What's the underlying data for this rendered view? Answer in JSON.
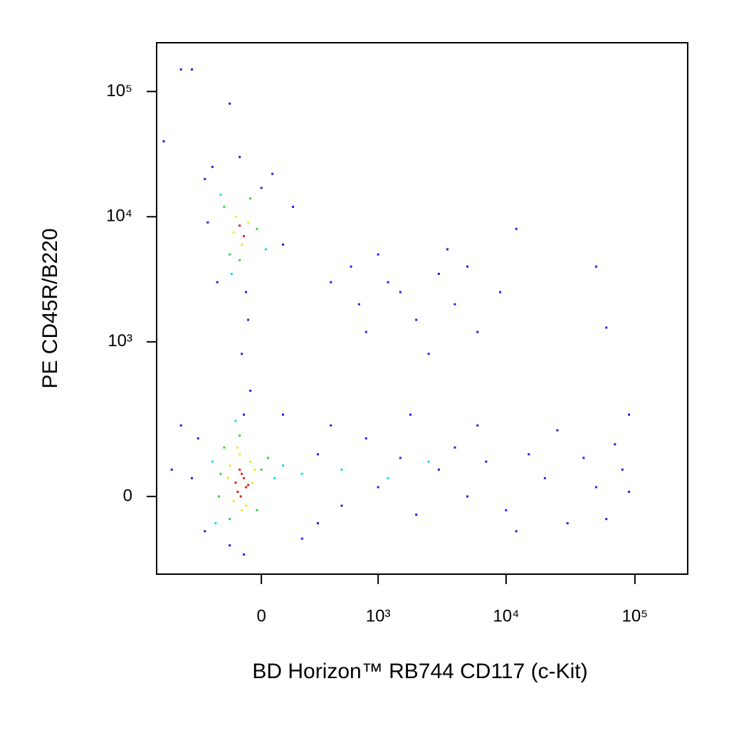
{
  "chart_data": {
    "type": "scatter",
    "xlabel": "BD Horizon™ RB744 CD117 (c-Kit)",
    "ylabel": "PE  CD45R/B220",
    "xscale": "biexponential",
    "yscale": "biexponential",
    "xlim": [
      -800,
      257000
    ],
    "ylim": [
      -230,
      245000
    ],
    "xticks": [
      0,
      {
        "value": 1000,
        "label": "10³"
      },
      {
        "value": 10000,
        "label": "10⁴"
      },
      {
        "value": 100000,
        "label": "10⁵"
      }
    ],
    "yticks": [
      0,
      {
        "value": 1000,
        "label": "10³"
      },
      {
        "value": 10000,
        "label": "10⁴"
      },
      {
        "value": 100000,
        "label": "10⁵"
      }
    ],
    "series": [
      {
        "color": "#1f1fe8",
        "x": [
          -300,
          -250,
          50,
          100,
          -280,
          -100,
          0,
          -220,
          150,
          -70,
          -60,
          -90,
          -50,
          -80,
          400,
          700,
          1000,
          1500,
          2000,
          3000,
          4000,
          5000,
          6000,
          800,
          2500,
          1200,
          3500,
          600,
          9000,
          300,
          500,
          800,
          1000,
          1500,
          2000,
          3000,
          4000,
          5000,
          7000,
          10000,
          15000,
          20000,
          30000,
          40000,
          50000,
          60000,
          70000,
          80000,
          400,
          1800,
          6000,
          25000,
          90000,
          12000,
          300,
          -400,
          -350,
          -300,
          200,
          -150,
          100,
          -600,
          -80,
          -500,
          -400,
          -150,
          -700,
          12000,
          50000,
          60000,
          90000,
          -500
        ],
        "y": [
          20000,
          25000,
          22000,
          6000,
          9000,
          30000,
          17000,
          3000,
          12000,
          2500,
          1500,
          800,
          400,
          250,
          3000,
          2000,
          5000,
          2500,
          1500,
          3500,
          2000,
          4000,
          1200,
          1200,
          800,
          3000,
          5500,
          4000,
          2500,
          100,
          -20,
          150,
          20,
          90,
          -40,
          60,
          120,
          0,
          80,
          -30,
          100,
          40,
          -60,
          90,
          20,
          -50,
          130,
          60,
          200,
          250,
          200,
          180,
          10,
          -80,
          -60,
          40,
          150,
          -80,
          -100,
          -120,
          250,
          60,
          -150,
          150000,
          150000,
          80000,
          40000,
          8000,
          4000,
          1300,
          250,
          200
        ]
      },
      {
        "color": "#18d8f0",
        "x": [
          -250,
          60,
          -230,
          100,
          -120,
          200,
          -200,
          20,
          -140,
          500,
          1200,
          2500
        ],
        "y": [
          80,
          40,
          -60,
          70,
          220,
          50,
          15000,
          5500,
          3500,
          60,
          40,
          80
        ]
      },
      {
        "color": "#3cd23c",
        "x": [
          -200,
          0,
          -180,
          -20,
          -150,
          30,
          -100,
          -210,
          -180,
          -20,
          -150,
          -50,
          -100
        ],
        "y": [
          50,
          60,
          120,
          -30,
          -50,
          90,
          160,
          0,
          12000,
          8000,
          5000,
          14000,
          4500
        ]
      },
      {
        "color": "#f0e628",
        "x": [
          -150,
          -50,
          -130,
          -40,
          -100,
          -70,
          -160,
          -30,
          -110,
          -90,
          -120,
          -60,
          -90,
          -130
        ],
        "y": [
          70,
          80,
          -10,
          30,
          100,
          -20,
          40,
          60,
          120,
          -30,
          10000,
          9000,
          6000,
          7500
        ]
      },
      {
        "color": "#e81e1e",
        "x": [
          -120,
          -90,
          -70,
          -110,
          -80,
          -100,
          -60,
          -95,
          -100,
          -80
        ],
        "y": [
          30,
          50,
          20,
          10,
          40,
          60,
          25,
          0,
          8500,
          7000
        ]
      }
    ]
  }
}
